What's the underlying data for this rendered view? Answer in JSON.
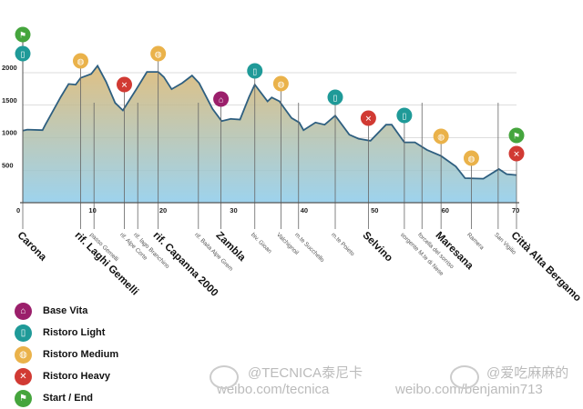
{
  "chart_data": {
    "type": "area",
    "title": "",
    "xlabel": "",
    "ylabel": "",
    "xlim": [
      0,
      70
    ],
    "ylim": [
      0,
      2000
    ],
    "x_ticks": [
      0,
      10,
      20,
      30,
      40,
      50,
      60,
      70
    ],
    "y_ticks": [
      500,
      1000,
      1500,
      2000
    ],
    "grid": true,
    "colors": {
      "line": "#2e5f80",
      "fill_top": "#d9b56e",
      "fill_bottom": "#8ccbea"
    },
    "profile": {
      "km": [
        0,
        0.65,
        2.8,
        3.2,
        5.4,
        6.5,
        7.5,
        8.2,
        9.7,
        10.6,
        11.8,
        13.1,
        14.2,
        16.1,
        17.6,
        19.2,
        20,
        21.1,
        22.6,
        24,
        25,
        26.9,
        28.2,
        29.5,
        30.8,
        32.1,
        32.9,
        34.7,
        35.3,
        36.4,
        37,
        38.1,
        39.2,
        39.8,
        41.5,
        42.8,
        44.3,
        46.3,
        47.6,
        49.3,
        51.5,
        52.3,
        54.1,
        55.6,
        57.3,
        59.3,
        61.4,
        62.7,
        65.3,
        67.5,
        68.6,
        70
      ],
      "elevation_m": [
        1107,
        1125,
        1116,
        1200,
        1630,
        1826,
        1817,
        1920,
        1980,
        2106,
        1863,
        1536,
        1420,
        1747,
        2013,
        2013,
        1933,
        1747,
        1840,
        1957,
        1840,
        1443,
        1256,
        1289,
        1280,
        1630,
        1817,
        1560,
        1620,
        1560,
        1467,
        1303,
        1233,
        1116,
        1233,
        1200,
        1340,
        1046,
        985,
        953,
        1200,
        1200,
        929,
        929,
        813,
        719,
        556,
        378,
        369,
        518,
        439,
        425
      ]
    },
    "waypoints": [
      {
        "name": "Carona",
        "km": 0,
        "major": true,
        "icons": [
          "start_end",
          "light"
        ]
      },
      {
        "name": "rif. Laghi Gemelli",
        "km": 8.2,
        "major": true,
        "icons": [
          "medium"
        ]
      },
      {
        "name": "passo Gemelli",
        "km": 10.1,
        "major": false,
        "icons": []
      },
      {
        "name": "rif. Alpe Corte",
        "km": 14.4,
        "major": false,
        "icons": [
          "heavy"
        ]
      },
      {
        "name": "rif. lago Branchino",
        "km": 16.3,
        "major": false,
        "icons": []
      },
      {
        "name": "rif. Capanna 2000",
        "km": 19.2,
        "major": true,
        "icons": [
          "medium"
        ]
      },
      {
        "name": "rif. Baita Alpe Grem",
        "km": 24.9,
        "major": false,
        "icons": []
      },
      {
        "name": "Zambla",
        "km": 28.1,
        "major": true,
        "icons": [
          "base_vita"
        ]
      },
      {
        "name": "biv. Gioan",
        "km": 32.9,
        "major": false,
        "icons": [
          "light"
        ]
      },
      {
        "name": "Valchignoil",
        "km": 36.6,
        "major": false,
        "icons": [
          "medium"
        ]
      },
      {
        "name": "m.te Succhello",
        "km": 39.1,
        "major": false,
        "icons": []
      },
      {
        "name": "m.te Poieto",
        "km": 44.3,
        "major": false,
        "icons": [
          "light"
        ]
      },
      {
        "name": "Selvino",
        "km": 49.0,
        "major": true,
        "icons": [
          "heavy"
        ]
      },
      {
        "name": "sorgente M.te di Nese",
        "km": 54.1,
        "major": false,
        "icons": [
          "light"
        ]
      },
      {
        "name": "forcella del sorriso",
        "km": 56.6,
        "major": false,
        "icons": []
      },
      {
        "name": "Maresana",
        "km": 59.3,
        "major": true,
        "icons": [
          "medium"
        ]
      },
      {
        "name": "Ramera",
        "km": 63.6,
        "major": false,
        "icons": [
          "medium"
        ]
      },
      {
        "name": "San Vigilio",
        "km": 67.4,
        "major": false,
        "icons": []
      },
      {
        "name": "Città Alta Bergamo",
        "km": 70,
        "major": true,
        "icons": [
          "start_end",
          "heavy"
        ]
      }
    ],
    "legend": [
      {
        "key": "base_vita",
        "label": "Base Vita",
        "color": "#9b1f6b",
        "icon": "house-icon"
      },
      {
        "key": "light",
        "label": "Ristoro Light",
        "color": "#1f9a98",
        "icon": "cup-icon"
      },
      {
        "key": "medium",
        "label": "Ristoro Medium",
        "color": "#eab24a",
        "icon": "food-icon"
      },
      {
        "key": "heavy",
        "label": "Ristoro Heavy",
        "color": "#d13a33",
        "icon": "cutlery-icon"
      },
      {
        "key": "start_end",
        "label": "Start / End",
        "color": "#45a53d",
        "icon": "flag-icon"
      }
    ],
    "legend_placement": "bottom-left"
  },
  "watermarks": [
    {
      "handle": "@TECNICA泰尼卡",
      "url": "weibo.com/tecnica"
    },
    {
      "handle": "@爱吃麻麻的",
      "url": "weibo.com/benjamin713"
    }
  ]
}
